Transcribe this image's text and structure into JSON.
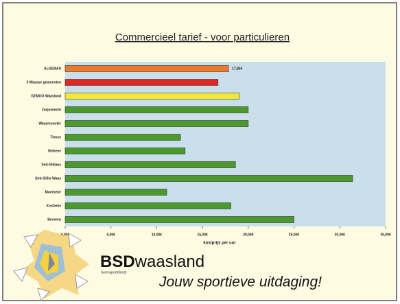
{
  "chart_data": {
    "type": "bar",
    "orientation": "horizontal",
    "title": "Commercieel tarief - voor particulieren",
    "x_label": "kostprijs per uur",
    "categories": [
      "ALGEMAS",
      "3 Waasse gemeenten",
      "GEMOO Waasland",
      "Zwijndrecht",
      "Waasmunster",
      "Temse",
      "Stekene",
      "Sint-Niklaas",
      "Sint-Gillis-Waas",
      "Moerbeke",
      "Kruibeke",
      "Beveren"
    ],
    "values": [
      17.85,
      16.7,
      19,
      20,
      20,
      12.6,
      13.1,
      18.6,
      31.4,
      11.1,
      18.1,
      25
    ],
    "value_labels": [
      "17,85€",
      null,
      null,
      null,
      null,
      null,
      null,
      null,
      null,
      null,
      null,
      null
    ],
    "colors": [
      "#f07a2a",
      "#e52424",
      "#f2e83a",
      "#4c9a2e",
      "#4c9a2e",
      "#4c9a2e",
      "#4c9a2e",
      "#4c9a2e",
      "#4c9a2e",
      "#4c9a2e",
      "#4c9a2e",
      "#4c9a2e"
    ],
    "xlim": [
      0,
      35
    ],
    "xticks": [
      {
        "value": 0,
        "label": "0,00€"
      },
      {
        "value": 5,
        "label": "5,00€"
      },
      {
        "value": 10,
        "label": "10,00€"
      },
      {
        "value": 15,
        "label": "15,00€"
      },
      {
        "value": 20,
        "label": "20,00€"
      },
      {
        "value": 25,
        "label": "25,00€"
      },
      {
        "value": 30,
        "label": "30,00€"
      },
      {
        "value": 35,
        "label": "35,00€"
      }
    ]
  },
  "logo": {
    "brand_bold": "BSD",
    "brand_rest": "waasland",
    "subtitle": "burensportdienst",
    "tagline": "Jouw sportieve uitdaging!"
  }
}
